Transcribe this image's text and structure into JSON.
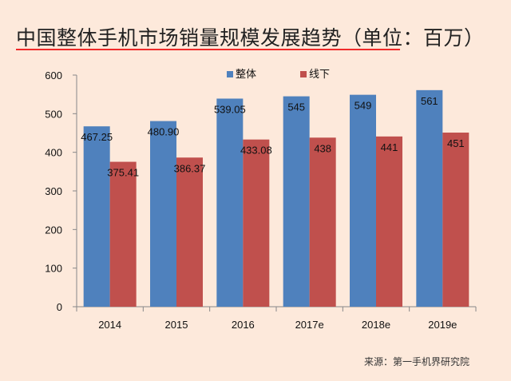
{
  "title": "中国整体手机市场销量规模发展趋势（单位：百万）",
  "source": "来源：第一手机界研究院",
  "chart_data": {
    "type": "bar",
    "title": "中国整体手机市场销量规模发展趋势（单位：百万）",
    "categories": [
      "2014",
      "2015",
      "2016",
      "2017e",
      "2018e",
      "2019e"
    ],
    "series": [
      {
        "name": "整体",
        "color": "#4f81bd",
        "values": [
          467.25,
          480.9,
          539.05,
          545,
          549,
          561
        ],
        "labels": [
          "467.25",
          "480.90",
          "539.05",
          "545",
          "549",
          "561"
        ]
      },
      {
        "name": "线下",
        "color": "#c0504d",
        "values": [
          375.41,
          386.37,
          433.08,
          438,
          441,
          451
        ],
        "labels": [
          "375.41",
          "386.37",
          "433.08",
          "438",
          "441",
          "451"
        ]
      }
    ],
    "ylim": [
      0,
      600
    ],
    "yticks": [
      "0",
      "100",
      "200",
      "300",
      "400",
      "500",
      "600"
    ],
    "grid": false,
    "legend": "top-center",
    "xlabel": "",
    "ylabel": ""
  }
}
